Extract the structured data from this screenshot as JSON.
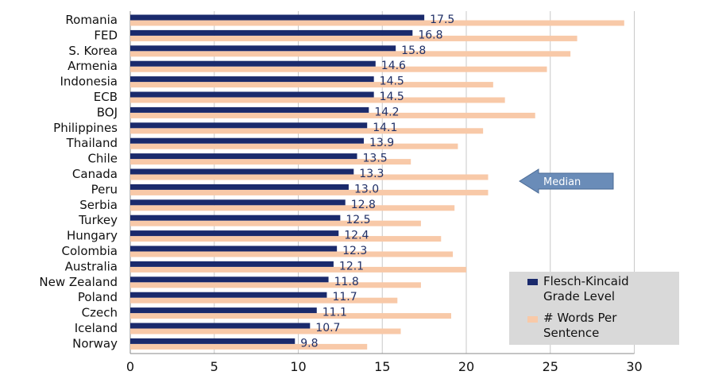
{
  "chart_data": {
    "type": "bar",
    "orientation": "horizontal",
    "categories": [
      "Romania",
      "FED",
      "S. Korea",
      "Armenia",
      "Indonesia",
      "ECB",
      "BOJ",
      "Philippines",
      "Thailand",
      "Chile",
      "Canada",
      "Peru",
      "Serbia",
      "Turkey",
      "Hungary",
      "Colombia",
      "Australia",
      "New Zealand",
      "Poland",
      "Czech",
      "Iceland",
      "Norway"
    ],
    "series": [
      {
        "name": "Flesch-Kincaid Grade Level",
        "color": "#1a2a6c",
        "values": [
          17.5,
          16.8,
          15.8,
          14.6,
          14.5,
          14.5,
          14.2,
          14.1,
          13.9,
          13.5,
          13.3,
          13.0,
          12.8,
          12.5,
          12.4,
          12.3,
          12.1,
          11.8,
          11.7,
          11.1,
          10.7,
          9.8
        ],
        "data_labels": [
          "17.5",
          "16.8",
          "15.8",
          "14.6",
          "14.5",
          "14.5",
          "14.2",
          "14.1",
          "13.9",
          "13.5",
          "13.3",
          "13.0",
          "12.8",
          "12.5",
          "12.4",
          "12.3",
          "12.1",
          "11.8",
          "11.7",
          "11.1",
          "10.7",
          "9.8"
        ]
      },
      {
        "name": "# Words Per Sentence",
        "color": "#f8c9a8",
        "values": [
          29.4,
          26.6,
          26.2,
          24.8,
          21.6,
          22.3,
          24.1,
          21.0,
          19.5,
          16.7,
          21.3,
          21.3,
          19.3,
          17.3,
          18.5,
          19.2,
          20.0,
          17.3,
          15.9,
          19.1,
          16.1,
          14.1
        ]
      }
    ],
    "x_ticks": [
      "0",
      "5",
      "10",
      "15",
      "20",
      "25",
      "30"
    ],
    "xlim": [
      0,
      30
    ],
    "grid": "vertical",
    "legend_position": "bottom-right",
    "annotation": {
      "text": "Median",
      "points_to": "Peru"
    }
  }
}
